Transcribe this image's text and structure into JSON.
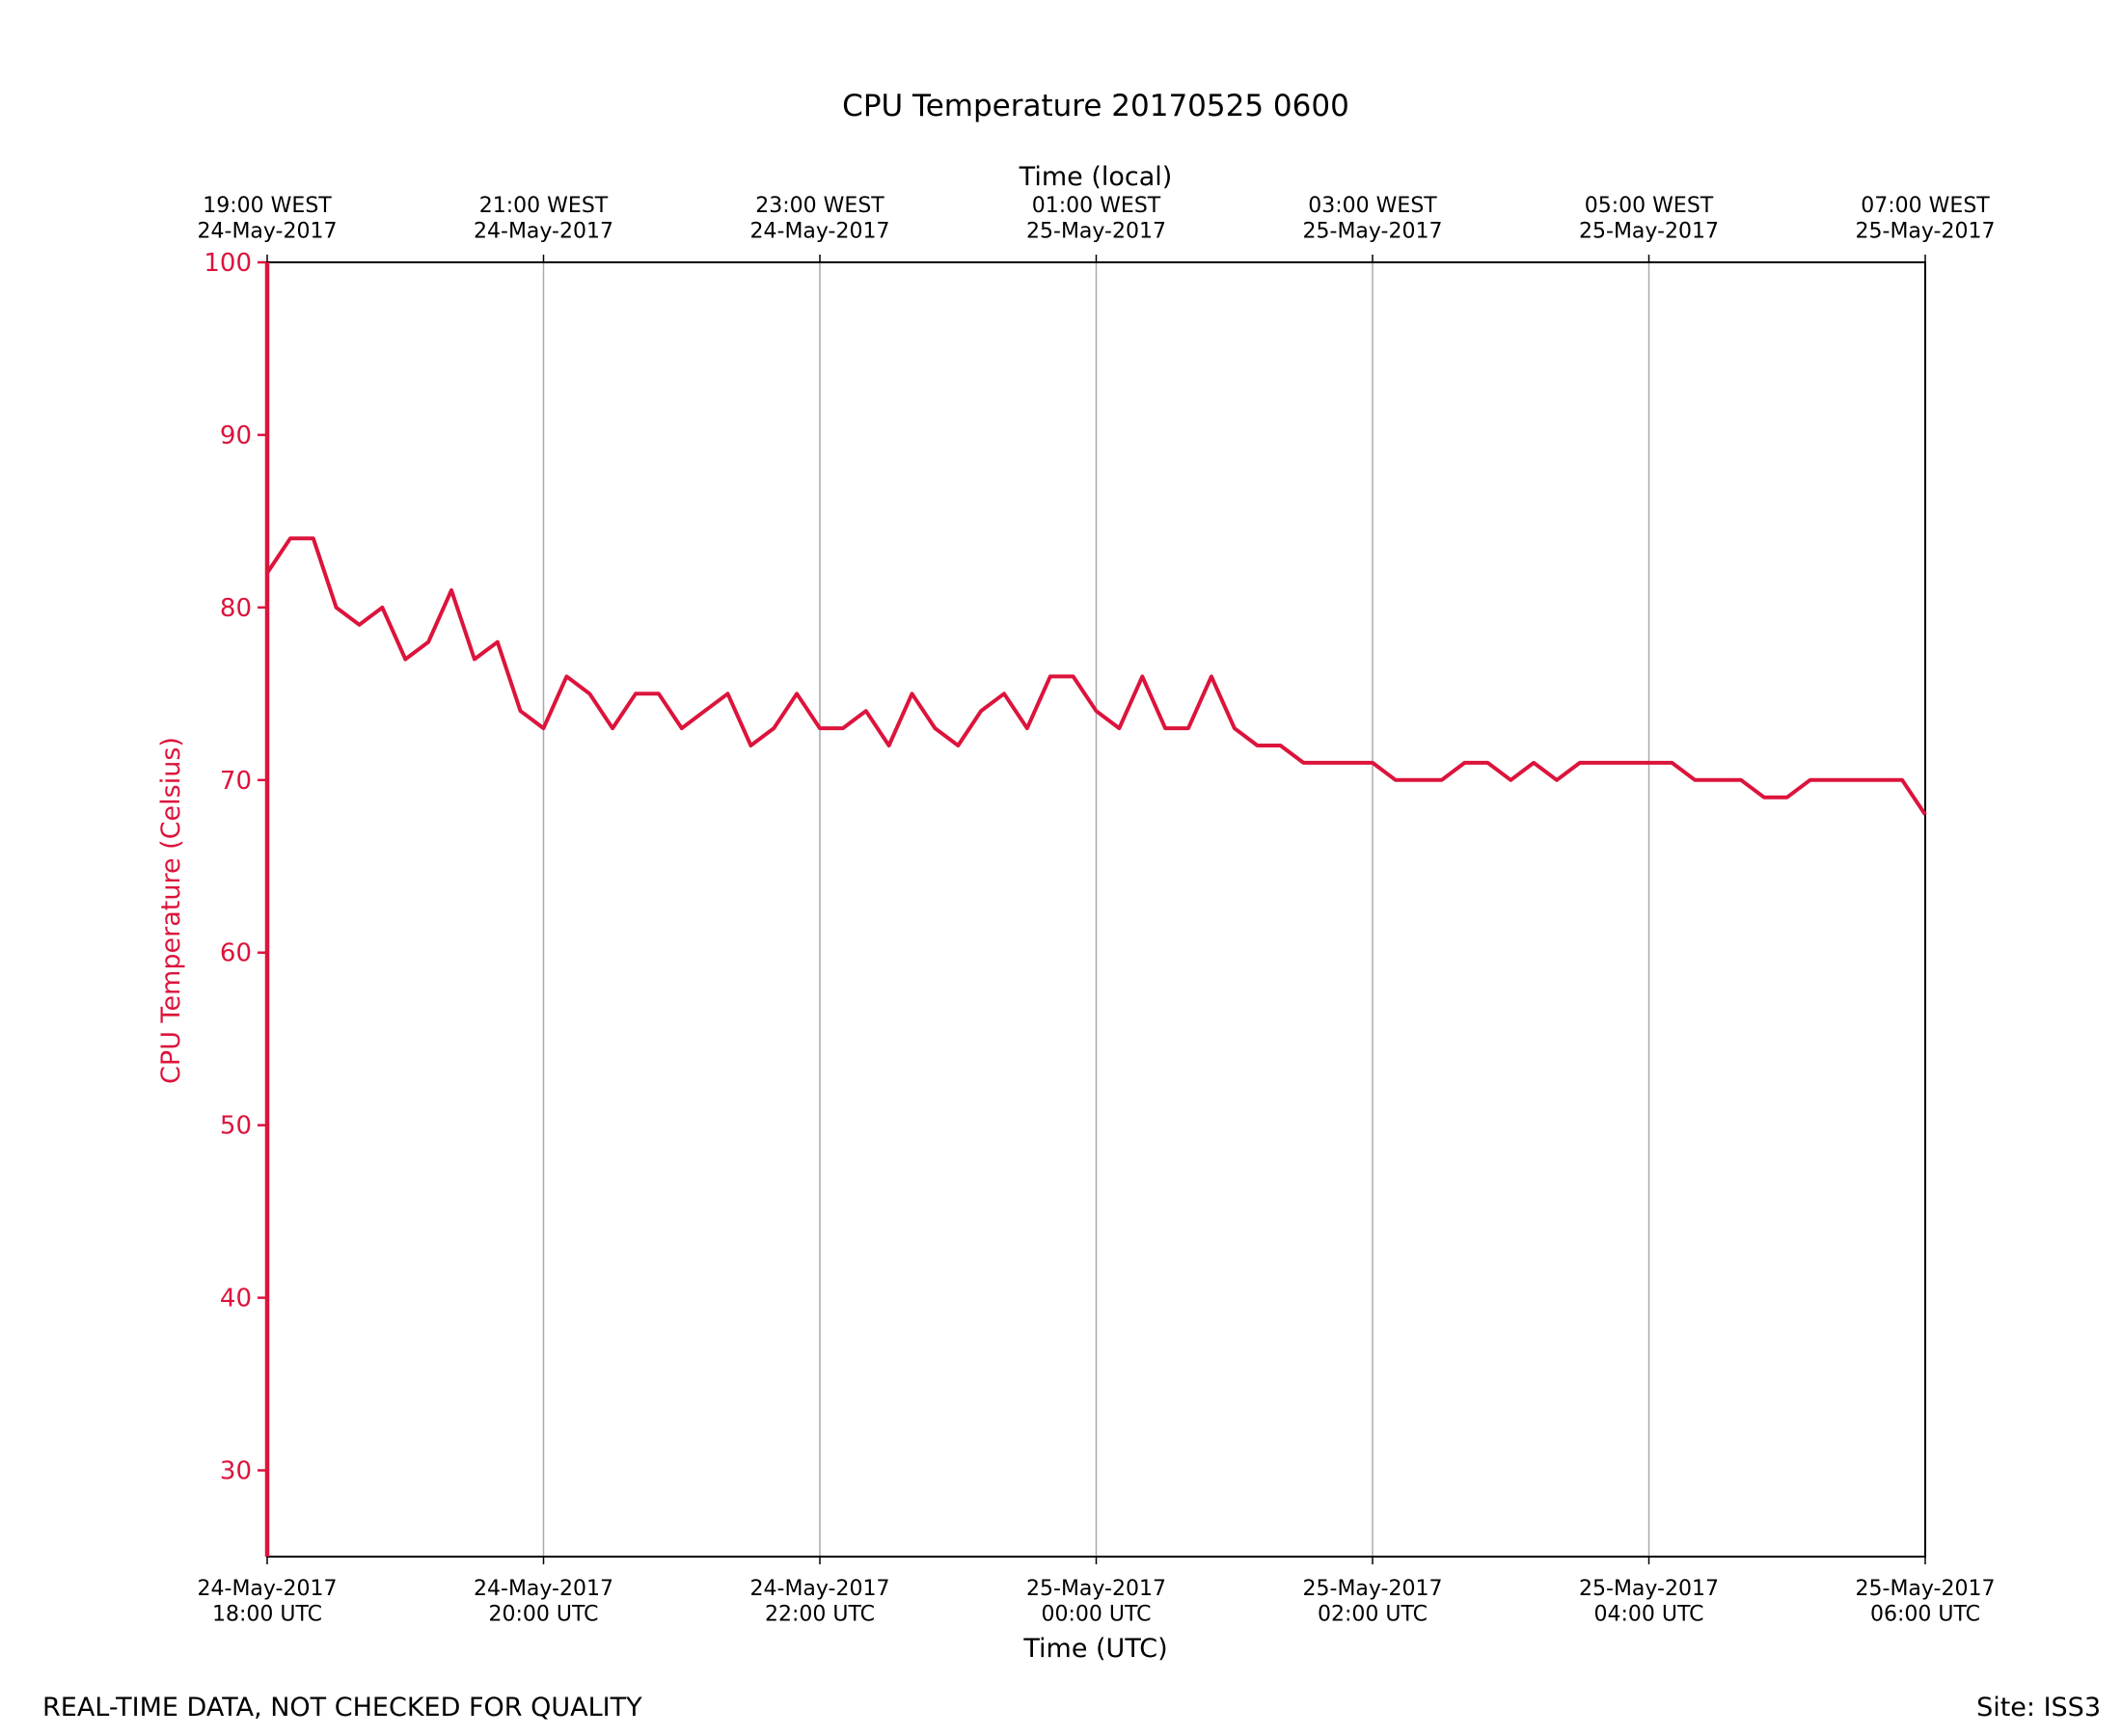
{
  "chart_data": {
    "type": "line",
    "title": "CPU Temperature 20170525 0600",
    "xlabel": "Time (UTC)",
    "x2label": "Time (local)",
    "ylabel": "CPU Temperature (Celsius)",
    "footer_left": "REAL-TIME DATA, NOT CHECKED FOR QUALITY",
    "footer_right": "Site: ISS3",
    "xlim": [
      "2017-05-24T18:00",
      "2017-05-25T06:00"
    ],
    "xticks": [
      {
        "value": "2017-05-24T18:00",
        "label": "24-May-2017\n18:00 UTC"
      },
      {
        "value": "2017-05-24T20:00",
        "label": "24-May-2017\n20:00 UTC"
      },
      {
        "value": "2017-05-24T22:00",
        "label": "24-May-2017\n22:00 UTC"
      },
      {
        "value": "2017-05-25T00:00",
        "label": "25-May-2017\n00:00 UTC"
      },
      {
        "value": "2017-05-25T02:00",
        "label": "25-May-2017\n02:00 UTC"
      },
      {
        "value": "2017-05-25T04:00",
        "label": "25-May-2017\n04:00 UTC"
      },
      {
        "value": "2017-05-25T06:00",
        "label": "25-May-2017\n06:00 UTC"
      }
    ],
    "x2ticks": [
      {
        "value": "2017-05-24T18:00",
        "label": "19:00 WEST\n24-May-2017"
      },
      {
        "value": "2017-05-24T20:00",
        "label": "21:00 WEST\n24-May-2017"
      },
      {
        "value": "2017-05-24T22:00",
        "label": "23:00 WEST\n24-May-2017"
      },
      {
        "value": "2017-05-25T00:00",
        "label": "01:00 WEST\n25-May-2017"
      },
      {
        "value": "2017-05-25T02:00",
        "label": "03:00 WEST\n25-May-2017"
      },
      {
        "value": "2017-05-25T04:00",
        "label": "05:00 WEST\n25-May-2017"
      },
      {
        "value": "2017-05-25T06:00",
        "label": "07:00 WEST\n25-May-2017"
      }
    ],
    "ylim": [
      25,
      100
    ],
    "yticks": [
      30,
      40,
      50,
      60,
      70,
      80,
      90,
      100
    ],
    "grid": true,
    "color": "#dc143c",
    "x": [
      "2017-05-24T18:00",
      "2017-05-24T18:10",
      "2017-05-24T18:20",
      "2017-05-24T18:30",
      "2017-05-24T18:40",
      "2017-05-24T18:50",
      "2017-05-24T19:00",
      "2017-05-24T19:10",
      "2017-05-24T19:20",
      "2017-05-24T19:30",
      "2017-05-24T19:40",
      "2017-05-24T19:50",
      "2017-05-24T20:00",
      "2017-05-24T20:10",
      "2017-05-24T20:20",
      "2017-05-24T20:30",
      "2017-05-24T20:40",
      "2017-05-24T20:50",
      "2017-05-24T21:00",
      "2017-05-24T21:10",
      "2017-05-24T21:20",
      "2017-05-24T21:30",
      "2017-05-24T21:40",
      "2017-05-24T21:50",
      "2017-05-24T22:00",
      "2017-05-24T22:10",
      "2017-05-24T22:20",
      "2017-05-24T22:30",
      "2017-05-24T22:40",
      "2017-05-24T22:50",
      "2017-05-24T23:00",
      "2017-05-24T23:10",
      "2017-05-24T23:20",
      "2017-05-24T23:30",
      "2017-05-24T23:40",
      "2017-05-24T23:50",
      "2017-05-25T00:00",
      "2017-05-25T00:10",
      "2017-05-25T00:20",
      "2017-05-25T00:30",
      "2017-05-25T00:40",
      "2017-05-25T00:50",
      "2017-05-25T01:00",
      "2017-05-25T01:10",
      "2017-05-25T01:20",
      "2017-05-25T01:30",
      "2017-05-25T01:40",
      "2017-05-25T01:50",
      "2017-05-25T02:00",
      "2017-05-25T02:10",
      "2017-05-25T02:20",
      "2017-05-25T02:30",
      "2017-05-25T02:40",
      "2017-05-25T02:50",
      "2017-05-25T03:00",
      "2017-05-25T03:10",
      "2017-05-25T03:20",
      "2017-05-25T03:30",
      "2017-05-25T03:40",
      "2017-05-25T03:50",
      "2017-05-25T04:00",
      "2017-05-25T04:10",
      "2017-05-25T04:20",
      "2017-05-25T04:30",
      "2017-05-25T04:40",
      "2017-05-25T04:50",
      "2017-05-25T05:00",
      "2017-05-25T05:10",
      "2017-05-25T05:20",
      "2017-05-25T05:30",
      "2017-05-25T05:40",
      "2017-05-25T05:50",
      "2017-05-25T06:00"
    ],
    "values": [
      82,
      84,
      84,
      80,
      79,
      80,
      77,
      78,
      81,
      77,
      78,
      74,
      73,
      76,
      75,
      73,
      75,
      75,
      73,
      74,
      75,
      72,
      73,
      75,
      73,
      73,
      74,
      72,
      75,
      73,
      72,
      74,
      75,
      73,
      76,
      76,
      74,
      73,
      76,
      73,
      73,
      76,
      73,
      72,
      72,
      71,
      71,
      71,
      71,
      70,
      70,
      70,
      71,
      71,
      70,
      71,
      70,
      71,
      71,
      71,
      71,
      71,
      70,
      70,
      70,
      69,
      69,
      70,
      70,
      70,
      70,
      70,
      68
    ]
  }
}
